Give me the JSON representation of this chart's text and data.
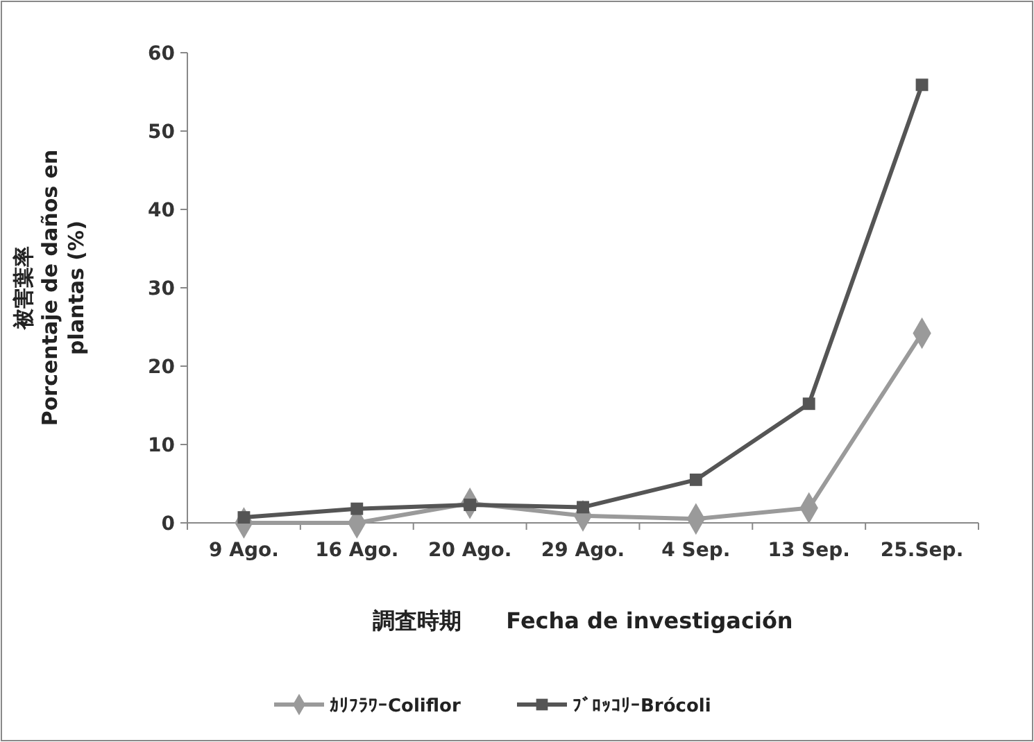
{
  "chart_data": {
    "type": "line",
    "ylabel": "被害葉率\nPorcentaje de daños en\nplantas (%)",
    "xlabel": "調査時期　　Fecha de investigación",
    "categories": [
      "9 Ago.",
      "16 Ago.",
      "20 Ago.",
      "29 Ago.",
      "4 Sep.",
      "13 Sep.",
      "25.Sep."
    ],
    "ylim": [
      0,
      60
    ],
    "yticks": [
      0,
      10,
      20,
      30,
      40,
      50,
      60
    ],
    "grid": false,
    "legend": "bottom",
    "series": [
      {
        "name": "ｶﾘﾌﾗﾜｰColiflor",
        "color": "#9a9a9a",
        "marker": "diamond",
        "values": [
          0,
          0,
          2.5,
          0.9,
          0.5,
          1.9,
          24.2
        ]
      },
      {
        "name": "ﾌﾞﾛｯｺﾘｰBrócoli",
        "color": "#555555",
        "marker": "square",
        "values": [
          0.7,
          1.8,
          2.3,
          2.0,
          5.5,
          15.2,
          55.9
        ]
      }
    ]
  }
}
